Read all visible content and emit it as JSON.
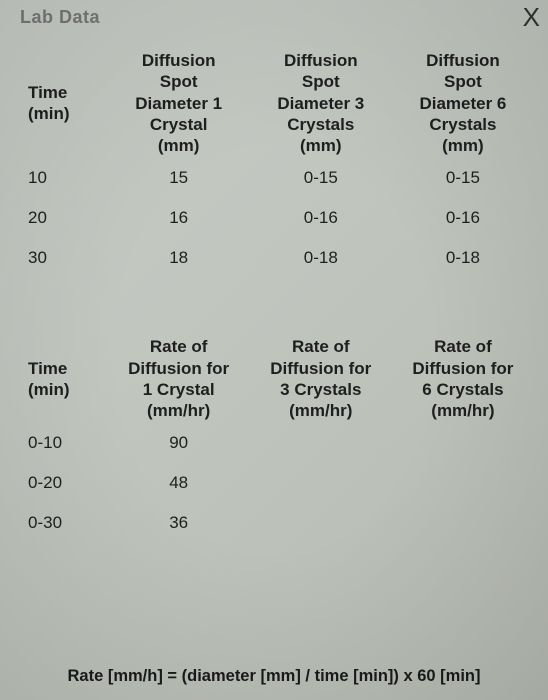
{
  "doc": {
    "partial_title": "Lab Data",
    "close_label": "X",
    "background_color": "#c1c6bf",
    "text_color": "#1f1f1f",
    "font_family": "Arial",
    "header_fontsize": 17,
    "cell_fontsize": 17
  },
  "table1": {
    "type": "table",
    "time_header_l1": "Time",
    "time_header_l2": "(min)",
    "col_headers": [
      {
        "l1": "Diffusion",
        "l2": "Spot",
        "l3": "Diameter 1",
        "l4": "Crystal",
        "l5": "(mm)"
      },
      {
        "l1": "Diffusion",
        "l2": "Spot",
        "l3": "Diameter 3",
        "l4": "Crystals",
        "l5": "(mm)"
      },
      {
        "l1": "Diffusion",
        "l2": "Spot",
        "l3": "Diameter 6",
        "l4": "Crystals",
        "l5": "(mm)"
      }
    ],
    "rows": [
      {
        "time": "10",
        "c1": "15",
        "c2": "0-15",
        "c3": "0-15"
      },
      {
        "time": "20",
        "c1": "16",
        "c2": "0-16",
        "c3": "0-16"
      },
      {
        "time": "30",
        "c1": "18",
        "c2": "0-18",
        "c3": "0-18"
      }
    ]
  },
  "table2": {
    "type": "table",
    "time_header_l1": "Time",
    "time_header_l2": "(min)",
    "col_headers": [
      {
        "l1": "Rate of",
        "l2": "Diffusion for",
        "l3": "1 Crystal",
        "l4": "(mm/hr)"
      },
      {
        "l1": "Rate of",
        "l2": "Diffusion for",
        "l3": "3 Crystals",
        "l4": "(mm/hr)"
      },
      {
        "l1": "Rate of",
        "l2": "Diffusion for",
        "l3": "6 Crystals",
        "l4": "(mm/hr)"
      }
    ],
    "rows": [
      {
        "time": "0-10",
        "c1": "90",
        "c2": "",
        "c3": ""
      },
      {
        "time": "0-20",
        "c1": "48",
        "c2": "",
        "c3": ""
      },
      {
        "time": "0-30",
        "c1": "36",
        "c2": "",
        "c3": ""
      }
    ]
  },
  "formula": "Rate [mm/h] = (diameter [mm] / time [min]) x 60 [min]"
}
